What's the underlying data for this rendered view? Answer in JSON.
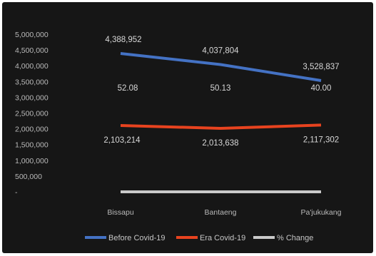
{
  "chart_data": {
    "type": "line",
    "categories": [
      "Bissapu",
      "Bantaeng",
      "Pa'jukukang"
    ],
    "y_ticks": [
      "5,000,000",
      "4,500,000",
      "4,000,000",
      "3,500,000",
      "3,000,000",
      "2,500,000",
      "2,000,000",
      "1,500,000",
      "1,000,000",
      "500,000",
      "-"
    ],
    "ylim": [
      0,
      5000000
    ],
    "grid": false,
    "legend_position": "bottom",
    "series": [
      {
        "name": "Before Covid-19",
        "color": "#4472c4",
        "values": [
          4388952,
          4037804,
          3528837
        ],
        "labels": [
          "4,388,952",
          "4,037,804",
          "3,528,837"
        ]
      },
      {
        "name": "Era Covid-19",
        "color": "#e8431f",
        "values": [
          2103214,
          2013638,
          2117302
        ],
        "labels": [
          "2,103,214",
          "2,013,638",
          "2,117,302"
        ]
      },
      {
        "name": "% Change",
        "color": "#c9c9c9",
        "values": [
          52.08,
          50.13,
          40.0
        ],
        "labels": [
          "52.08",
          "50.13",
          "40.00"
        ]
      }
    ]
  }
}
